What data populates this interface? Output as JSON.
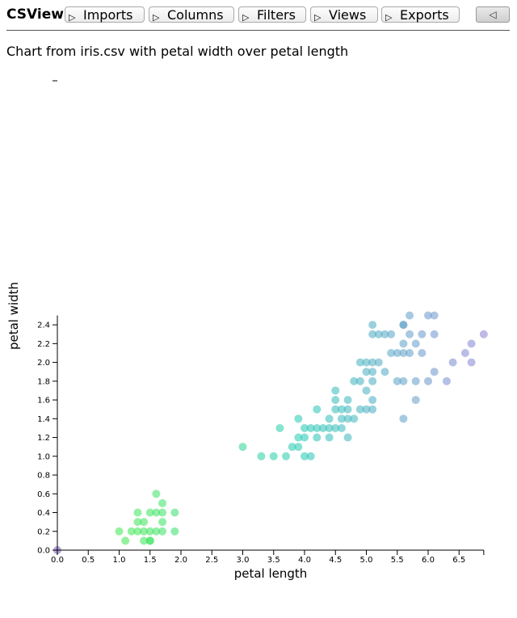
{
  "toolbar": {
    "brand": "CSView",
    "menus": [
      "Imports",
      "Columns",
      "Filters",
      "Views",
      "Exports"
    ],
    "menu_icon": "triangle-right-icon",
    "collapse_label": "◁"
  },
  "chart_title": "Chart from iris.csv with petal width over petal length",
  "chart_data": {
    "type": "scatter",
    "title": "Chart from iris.csv with petal width over petal length",
    "xlabel": "petal length",
    "ylabel": "petal width",
    "xlim": [
      0,
      6.9
    ],
    "ylim": [
      0,
      2.5
    ],
    "xticks": [
      "0.0",
      "0.5",
      "1.0",
      "1.5",
      "2.0",
      "2.5",
      "3.0",
      "3.5",
      "4.0",
      "4.5",
      "5.0",
      "5.5",
      "6.0",
      "6.5"
    ],
    "yticks": [
      "0.0",
      "0.2",
      "0.4",
      "0.6",
      "0.8",
      "1.0",
      "1.2",
      "1.4",
      "1.6",
      "1.8",
      "2.0",
      "2.2",
      "2.4"
    ],
    "color_scale": {
      "low": "#3ee84a",
      "mid": "#1fc9b3",
      "high": "#8a7fd6"
    },
    "points": [
      {
        "x": 0,
        "y": 0
      },
      {
        "x": 1.1,
        "y": 0.1
      },
      {
        "x": 1.4,
        "y": 0.1
      },
      {
        "x": 1.5,
        "y": 0.1
      },
      {
        "x": 1.5,
        "y": 0.1
      },
      {
        "x": 1.0,
        "y": 0.2
      },
      {
        "x": 1.2,
        "y": 0.2
      },
      {
        "x": 1.3,
        "y": 0.2
      },
      {
        "x": 1.4,
        "y": 0.2
      },
      {
        "x": 1.5,
        "y": 0.2
      },
      {
        "x": 1.6,
        "y": 0.2
      },
      {
        "x": 1.7,
        "y": 0.2
      },
      {
        "x": 1.9,
        "y": 0.2
      },
      {
        "x": 1.3,
        "y": 0.3
      },
      {
        "x": 1.4,
        "y": 0.3
      },
      {
        "x": 1.7,
        "y": 0.3
      },
      {
        "x": 1.3,
        "y": 0.4
      },
      {
        "x": 1.5,
        "y": 0.4
      },
      {
        "x": 1.6,
        "y": 0.4
      },
      {
        "x": 1.7,
        "y": 0.4
      },
      {
        "x": 1.9,
        "y": 0.4
      },
      {
        "x": 1.7,
        "y": 0.5
      },
      {
        "x": 1.6,
        "y": 0.6
      },
      {
        "x": 3.3,
        "y": 1.0
      },
      {
        "x": 3.5,
        "y": 1.0
      },
      {
        "x": 3.7,
        "y": 1.0
      },
      {
        "x": 4.0,
        "y": 1.0
      },
      {
        "x": 4.1,
        "y": 1.0
      },
      {
        "x": 3.0,
        "y": 1.1
      },
      {
        "x": 3.8,
        "y": 1.1
      },
      {
        "x": 3.9,
        "y": 1.1
      },
      {
        "x": 3.9,
        "y": 1.2
      },
      {
        "x": 4.0,
        "y": 1.2
      },
      {
        "x": 4.2,
        "y": 1.2
      },
      {
        "x": 4.4,
        "y": 1.2
      },
      {
        "x": 4.7,
        "y": 1.2
      },
      {
        "x": 3.6,
        "y": 1.3
      },
      {
        "x": 4.0,
        "y": 1.3
      },
      {
        "x": 4.1,
        "y": 1.3
      },
      {
        "x": 4.2,
        "y": 1.3
      },
      {
        "x": 4.3,
        "y": 1.3
      },
      {
        "x": 4.4,
        "y": 1.3
      },
      {
        "x": 4.5,
        "y": 1.3
      },
      {
        "x": 4.6,
        "y": 1.3
      },
      {
        "x": 3.9,
        "y": 1.4
      },
      {
        "x": 4.4,
        "y": 1.4
      },
      {
        "x": 4.6,
        "y": 1.4
      },
      {
        "x": 4.7,
        "y": 1.4
      },
      {
        "x": 4.8,
        "y": 1.4
      },
      {
        "x": 5.6,
        "y": 1.4
      },
      {
        "x": 4.2,
        "y": 1.5
      },
      {
        "x": 4.5,
        "y": 1.5
      },
      {
        "x": 4.6,
        "y": 1.5
      },
      {
        "x": 4.7,
        "y": 1.5
      },
      {
        "x": 4.9,
        "y": 1.5
      },
      {
        "x": 5.0,
        "y": 1.5
      },
      {
        "x": 5.1,
        "y": 1.5
      },
      {
        "x": 4.5,
        "y": 1.6
      },
      {
        "x": 4.7,
        "y": 1.6
      },
      {
        "x": 5.1,
        "y": 1.6
      },
      {
        "x": 5.8,
        "y": 1.6
      },
      {
        "x": 4.5,
        "y": 1.7
      },
      {
        "x": 5.0,
        "y": 1.7
      },
      {
        "x": 4.8,
        "y": 1.8
      },
      {
        "x": 4.9,
        "y": 1.8
      },
      {
        "x": 5.1,
        "y": 1.8
      },
      {
        "x": 5.5,
        "y": 1.8
      },
      {
        "x": 5.6,
        "y": 1.8
      },
      {
        "x": 5.8,
        "y": 1.8
      },
      {
        "x": 6.0,
        "y": 1.8
      },
      {
        "x": 6.3,
        "y": 1.8
      },
      {
        "x": 5.0,
        "y": 1.9
      },
      {
        "x": 5.1,
        "y": 1.9
      },
      {
        "x": 5.3,
        "y": 1.9
      },
      {
        "x": 6.1,
        "y": 1.9
      },
      {
        "x": 4.9,
        "y": 2.0
      },
      {
        "x": 5.0,
        "y": 2.0
      },
      {
        "x": 5.1,
        "y": 2.0
      },
      {
        "x": 5.2,
        "y": 2.0
      },
      {
        "x": 6.4,
        "y": 2.0
      },
      {
        "x": 6.7,
        "y": 2.0
      },
      {
        "x": 5.4,
        "y": 2.1
      },
      {
        "x": 5.5,
        "y": 2.1
      },
      {
        "x": 5.6,
        "y": 2.1
      },
      {
        "x": 5.7,
        "y": 2.1
      },
      {
        "x": 5.9,
        "y": 2.1
      },
      {
        "x": 6.6,
        "y": 2.1
      },
      {
        "x": 5.6,
        "y": 2.2
      },
      {
        "x": 5.8,
        "y": 2.2
      },
      {
        "x": 6.7,
        "y": 2.2
      },
      {
        "x": 5.1,
        "y": 2.3
      },
      {
        "x": 5.2,
        "y": 2.3
      },
      {
        "x": 5.3,
        "y": 2.3
      },
      {
        "x": 5.4,
        "y": 2.3
      },
      {
        "x": 5.7,
        "y": 2.3
      },
      {
        "x": 5.9,
        "y": 2.3
      },
      {
        "x": 6.1,
        "y": 2.3
      },
      {
        "x": 6.9,
        "y": 2.3
      },
      {
        "x": 5.1,
        "y": 2.4
      },
      {
        "x": 5.6,
        "y": 2.4
      },
      {
        "x": 5.6,
        "y": 2.4
      },
      {
        "x": 5.7,
        "y": 2.5
      },
      {
        "x": 6.0,
        "y": 2.5
      },
      {
        "x": 6.1,
        "y": 2.5
      }
    ]
  }
}
